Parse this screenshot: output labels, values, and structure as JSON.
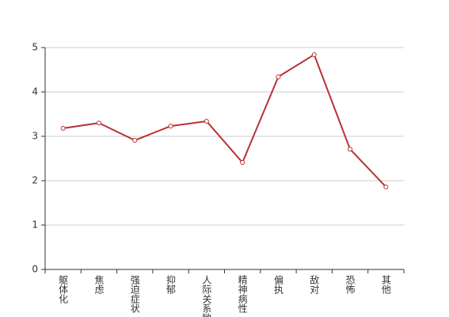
{
  "chart_data": {
    "type": "line",
    "categories": [
      "躯体化",
      "焦虑",
      "强迫症状",
      "抑郁",
      "人际关系敏感",
      "精神病性",
      "偏执",
      "敌对",
      "恐怖",
      "其他"
    ],
    "series": [
      {
        "color": "#b83232",
        "values": [
          3.18,
          3.3,
          2.91,
          3.23,
          3.34,
          2.41,
          4.34,
          4.84,
          2.71,
          1.86
        ]
      }
    ],
    "ylim": [
      0,
      5
    ],
    "yticks": [
      0,
      1,
      2,
      3,
      4,
      5
    ],
    "grid": true
  }
}
